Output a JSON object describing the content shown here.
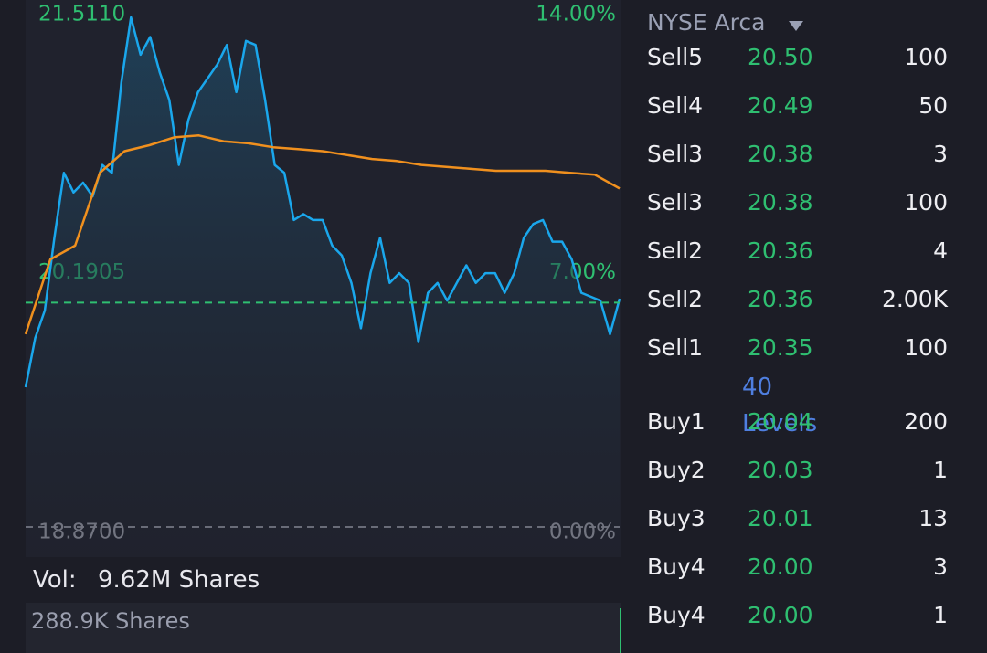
{
  "chart_data": {
    "type": "line",
    "ylim": [
      18.87,
      21.511
    ],
    "yticks": [
      {
        "value": 18.87,
        "label": "18.8700"
      },
      {
        "value": 20.1905,
        "label": "20.1905"
      },
      {
        "value": 21.511,
        "label": "21.5110"
      }
    ],
    "y2lim": [
      0,
      14
    ],
    "y2ticks": [
      {
        "value": 0,
        "label": "0.00%"
      },
      {
        "value": 7,
        "label": "7.00%"
      },
      {
        "value": 14,
        "label": "14.00%"
      }
    ],
    "reference_line": 20.01,
    "reference_color": "#2fbf71",
    "series": [
      {
        "color": "#1aa7ec",
        "values": [
          19.58,
          19.83,
          19.97,
          20.34,
          20.67,
          20.57,
          20.62,
          20.55,
          20.71,
          20.67,
          21.13,
          21.46,
          21.27,
          21.36,
          21.18,
          21.04,
          20.71,
          20.94,
          21.08,
          21.15,
          21.22,
          21.32,
          21.08,
          21.34,
          21.32,
          21.04,
          20.71,
          20.67,
          20.43,
          20.46,
          20.43,
          20.43,
          20.3,
          20.25,
          20.11,
          19.88,
          20.16,
          20.34,
          20.11,
          20.16,
          20.11,
          19.81,
          20.06,
          20.11,
          20.02,
          20.11,
          20.2,
          20.11,
          20.16,
          20.16,
          20.06,
          20.16,
          20.34,
          20.41,
          20.43,
          20.32,
          20.32,
          20.23,
          20.06,
          20.04,
          20.02,
          19.85,
          20.03
        ]
      },
      {
        "color": "#f0901e",
        "values": [
          19.85,
          20.23,
          20.3,
          20.67,
          20.78,
          20.81,
          20.85,
          20.86,
          20.83,
          20.82,
          20.8,
          20.79,
          20.78,
          20.76,
          20.74,
          20.73,
          20.71,
          20.7,
          20.69,
          20.68,
          20.68,
          20.68,
          20.67,
          20.66,
          20.59
        ]
      }
    ]
  },
  "volume": {
    "label": "Vol:",
    "value": "9.62M Shares"
  },
  "sub_volume": "288.9K Shares",
  "order_book": {
    "exchange": "NYSE Arca",
    "levels_link": "40 Levels",
    "asks": [
      [
        "Sell5",
        "20.50",
        "100"
      ],
      [
        "Sell4",
        "20.49",
        "50"
      ],
      [
        "Sell3",
        "20.38",
        "3"
      ],
      [
        "Sell3",
        "20.38",
        "100"
      ],
      [
        "Sell2",
        "20.36",
        "4"
      ],
      [
        "Sell2",
        "20.36",
        "2.00K"
      ],
      [
        "Sell1",
        "20.35",
        "100"
      ]
    ],
    "bids": [
      [
        "Buy1",
        "20.04",
        "200"
      ],
      [
        "Buy2",
        "20.03",
        "1"
      ],
      [
        "Buy3",
        "20.01",
        "13"
      ],
      [
        "Buy4",
        "20.00",
        "3"
      ],
      [
        "Buy4",
        "20.00",
        "1"
      ]
    ]
  }
}
